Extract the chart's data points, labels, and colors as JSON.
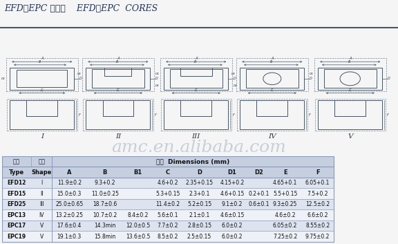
{
  "title": "EFD、EPC 型磁芯    EFD、EPC  CORES",
  "watermark": "amc.en.alibaba.com",
  "col_labels": [
    "Type",
    "Shape",
    "A",
    "B",
    "B1",
    "C",
    "D",
    "D1",
    "D2",
    "E",
    "F"
  ],
  "col_labels_cn": [
    "型号",
    "形状"
  ],
  "dim_header": "尺寸  Dimensions (mm)",
  "table_data": [
    [
      "EFD12",
      "I",
      "11.9±0.2",
      "9.3+0.2",
      "",
      "4.6+0.2",
      "2.35+0.15",
      "4.15+0.2",
      "",
      "4.65+0.1",
      "6.05+0.1"
    ],
    [
      "EFD15",
      "II",
      "15.0±0.3",
      "11.0±0.25",
      "",
      "5.3+0.15",
      "2.3+0.1",
      "4.6+0.15",
      "0.2+0.1",
      "5.5+0.15",
      "7.5+0.2"
    ],
    [
      "EFD25",
      "III",
      "25.0±0.65",
      "18.7±0.6",
      "",
      "11.4±0.2",
      "5.2±0.15",
      "9.1±0.2",
      "0.6±0.1",
      "9.3±0.25",
      "12.5±0.2"
    ],
    [
      "EPC13",
      "IV",
      "13.2±0.25",
      "10.7±0.2",
      "8.4±0.2",
      "5.6±0.1",
      "2.1±0.1",
      "4.6±0.15",
      "",
      "4.6±0.2",
      "6.6±0.2"
    ],
    [
      "EPC17",
      "V",
      "17.6±0.4",
      "14.3min",
      "12.0±0.5",
      "7.7±0.2",
      "2.8±0.15",
      "6.0±0.2",
      "",
      "6.05±0.2",
      "8.55±0.2"
    ],
    [
      "EPC19",
      "V",
      "19.1±0.3",
      "15.8min",
      "13.6±0.5",
      "8.5±0.2",
      "2.5±0.15",
      "6.0±0.2",
      "",
      "7.25±0.2",
      "9.75±0.2"
    ]
  ],
  "bg_color": "#f5f5f5",
  "table_header_bg": "#c5cfe0",
  "table_row_bg1": "#dde4ef",
  "table_row_bg2": "#eef1f7",
  "border_color": "#8899bb",
  "text_color": "#111111",
  "dim_line_color": "#555566",
  "shape_labels": [
    "I",
    "II",
    "III",
    "IV",
    "V"
  ]
}
